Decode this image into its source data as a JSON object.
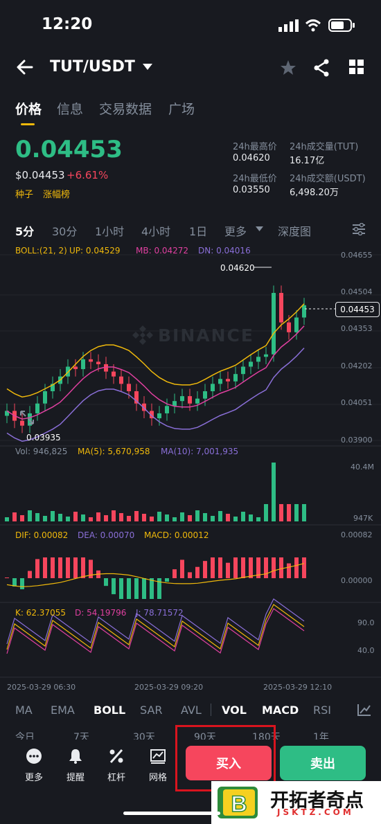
{
  "status_bar": {
    "time": "12:20"
  },
  "header": {
    "pair": "TUT/USDT"
  },
  "tabs": [
    "价格",
    "信息",
    "交易数据",
    "广场"
  ],
  "price": {
    "last": "0.04453",
    "usd": "$0.04453",
    "change": "+6.61%",
    "tags": [
      "种子",
      "涨幅榜"
    ]
  },
  "stats": {
    "high_label": "24h最高价",
    "high": "0.04620",
    "low_label": "24h最低价",
    "low": "0.03550",
    "vol_tut_label": "24h成交量(TUT)",
    "vol_tut": "16.17亿",
    "vol_usdt_label": "24h成交额(USDT)",
    "vol_usdt": "6,498.20万"
  },
  "timeframes": [
    "5分",
    "30分",
    "1小时",
    "4小时",
    "1日",
    "更多",
    "深度图"
  ],
  "boll_legend": {
    "params": "BOLL:(21, 2)",
    "up": "UP: 0.04529",
    "mb": "MB: 0.04272",
    "dn": "DN: 0.04016"
  },
  "price_axis": [
    "0.04655",
    "0.04504",
    "0.04353",
    "0.04202",
    "0.04051",
    "0.03900"
  ],
  "price_marker": "0.04453",
  "high_marker": "0.04620",
  "low_marker": "0.03935",
  "watermark": "BINANCE",
  "vol_legend": {
    "vol": "Vol: 946,825",
    "ma5": "MA(5): 5,670,958",
    "ma10": "MA(10): 7,001,935"
  },
  "vol_axis": [
    "40.4M",
    "947K"
  ],
  "macd_legend": {
    "dif": "DIF: 0.00082",
    "dea": "DEA: 0.00070",
    "macd": "MACD: 0.00012"
  },
  "macd_axis": [
    "0.00082",
    "0.00000"
  ],
  "kdj_legend": {
    "k": "K: 62.37055",
    "d": "D: 54.19796",
    "j": "J: 78.71572"
  },
  "kdj_axis": [
    "90.0",
    "40.0"
  ],
  "time_axis": [
    "2025-03-29 06:30",
    "2025-03-29 09:20",
    "2025-03-29 12:10"
  ],
  "indicators": [
    "MA",
    "EMA",
    "BOLL",
    "SAR",
    "AVL",
    "VOL",
    "MACD",
    "RSI"
  ],
  "periods": [
    "今日",
    "7天",
    "30天",
    "90天",
    "180天",
    "1年"
  ],
  "actions": [
    "更多",
    "提醒",
    "杠杆",
    "网格"
  ],
  "buy_label": "买入",
  "sell_label": "卖出",
  "logo": {
    "name": "开拓者奇点",
    "url": "JSKTZ.COM"
  },
  "colors": {
    "up": "#2ebd85",
    "down": "#f6465d",
    "accent": "#f0b90b",
    "mb": "#e040a0",
    "dn": "#8a6fd8"
  },
  "chart_data": {
    "type": "candlestick",
    "candles_close_approx": [
      0.0402,
      0.0398,
      0.0396,
      0.0401,
      0.0405,
      0.041,
      0.0413,
      0.0416,
      0.042,
      0.0419,
      0.0423,
      0.0422,
      0.0421,
      0.0418,
      0.0416,
      0.0413,
      0.041,
      0.0405,
      0.0402,
      0.0399,
      0.0401,
      0.0404,
      0.0406,
      0.0408,
      0.0405,
      0.0407,
      0.041,
      0.0413,
      0.0415,
      0.0414,
      0.0417,
      0.042,
      0.0422,
      0.0424,
      0.0425,
      0.045,
      0.0438,
      0.0434,
      0.044,
      0.0445
    ]
  }
}
